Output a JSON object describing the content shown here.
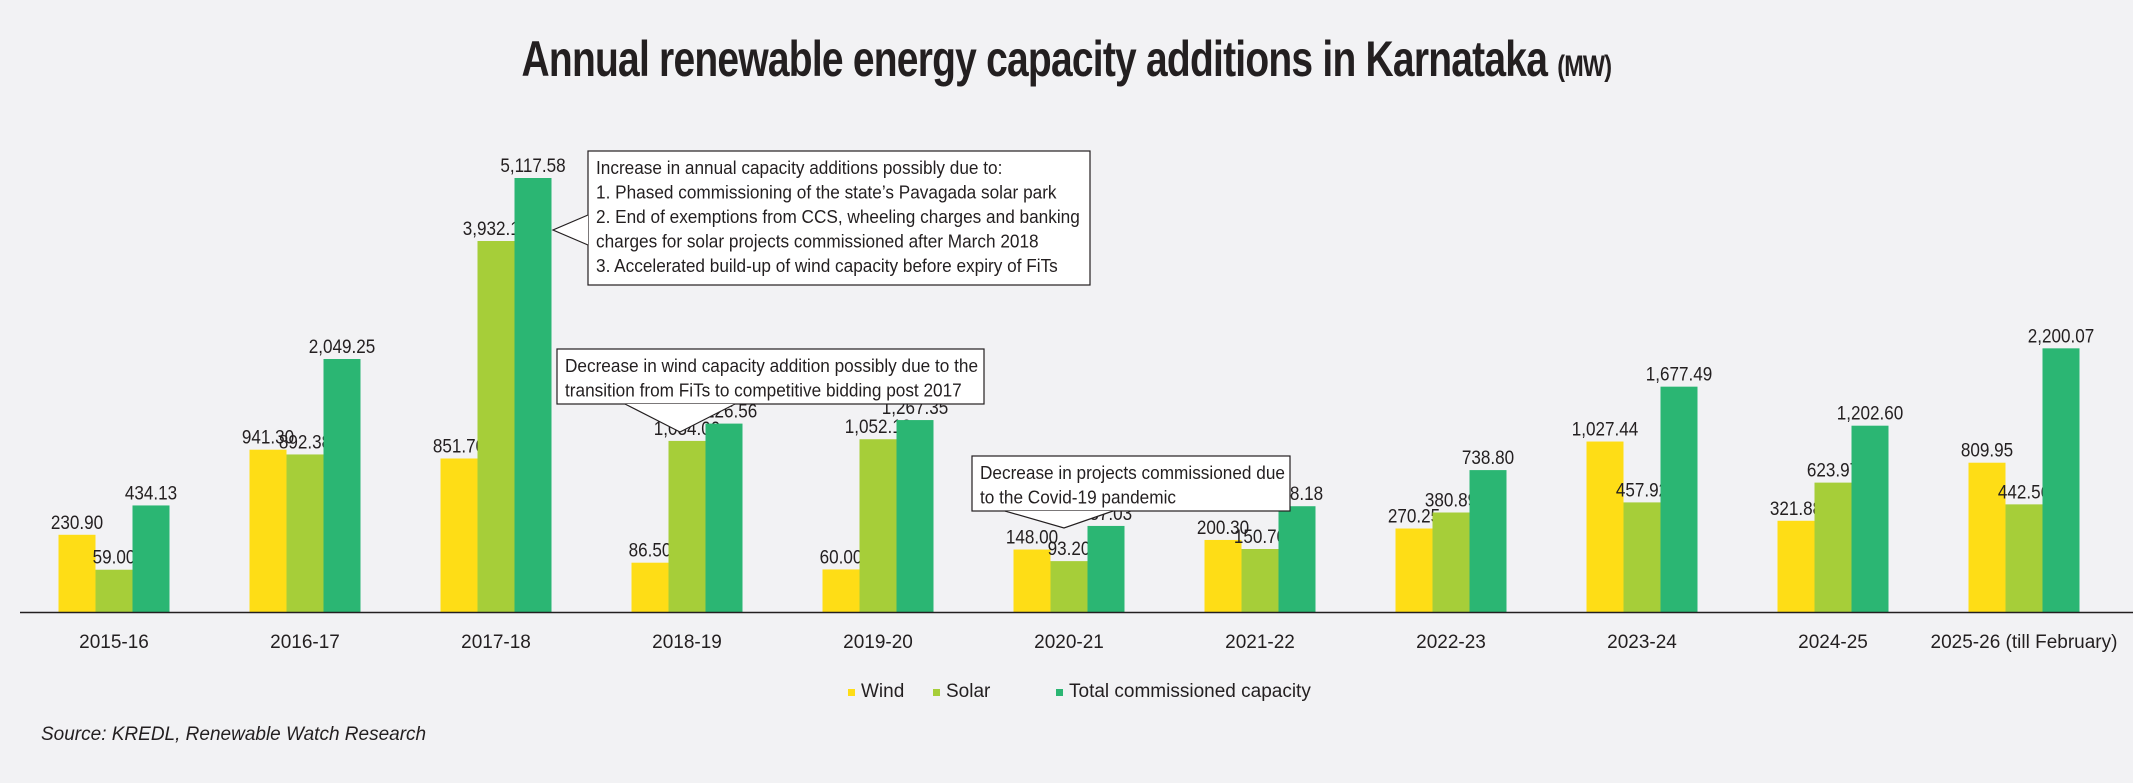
{
  "chart_data": {
    "type": "bar",
    "title": "Annual renewable energy capacity additions in Karnataka",
    "title_unit": "(MW)",
    "xlabel": "",
    "ylabel": "",
    "categories": [
      "2015-16",
      "2016-17",
      "2017-18",
      "2018-19",
      "2019-20",
      "2020-21",
      "2021-22",
      "2022-23",
      "2023-24",
      "2024-25",
      "2025-26 (till February)"
    ],
    "series": [
      {
        "name": "Wind",
        "color": "#fedd16",
        "values": [
          230.9,
          941.3,
          851.7,
          86.5,
          60.0,
          148.0,
          200.3,
          270.25,
          1027.44,
          321.88,
          809.95
        ],
        "labels": [
          "230.90",
          "941.30",
          "851.70",
          "86.50",
          "60.00",
          "148.00",
          "200.30",
          "270.25",
          "1,027.44",
          "321.88",
          "809.95"
        ]
      },
      {
        "name": "Solar",
        "color": "#a6ce39",
        "values": [
          59.0,
          892.38,
          3932.18,
          1034.0,
          1052.1,
          93.2,
          150.7,
          380.89,
          457.92,
          623.97,
          442.56
        ],
        "labels": [
          "59.00",
          "892.38",
          "3,932.18",
          "1,034.00",
          "1,052.10",
          "93.20",
          "150.70",
          "380.89",
          "457.92",
          "623.97",
          "442.56"
        ]
      },
      {
        "name": "Total commissioned capacity",
        "color": "#2bb673",
        "values": [
          434.13,
          2049.25,
          5117.58,
          1226.56,
          1267.35,
          287.03,
          428.18,
          738.8,
          1677.49,
          1202.6,
          2200.07
        ],
        "labels": [
          "434.13",
          "2,049.25",
          "5,117.58",
          "1,226.56",
          "1,267.35",
          "287.03",
          "428.18",
          "738.80",
          "1,677.49",
          "1,202.60",
          "2,200.07"
        ]
      }
    ],
    "grid": false,
    "legend_position": "bottom-center",
    "annotations": [
      {
        "category": "2017-18",
        "lines": [
          "Increase in annual capacity additions possibly due to:",
          "1. Phased commissioning of the state’s Pavagada solar park",
          "2. End of exemptions from CCS, wheeling charges and banking",
          "charges for solar projects commissioned after March 2018",
          "3. Accelerated build-up of wind capacity before expiry of FiTs"
        ]
      },
      {
        "category": "2018-19",
        "lines": [
          "Decrease in wind capacity addition possibly due to the",
          "transition from FiTs to competitive bidding post 2017"
        ]
      },
      {
        "category": "2020-21",
        "lines": [
          "Decrease in projects commissioned due",
          "to the Covid-19 pandemic"
        ]
      }
    ]
  },
  "source": "Source: KREDL, Renewable Watch Research"
}
